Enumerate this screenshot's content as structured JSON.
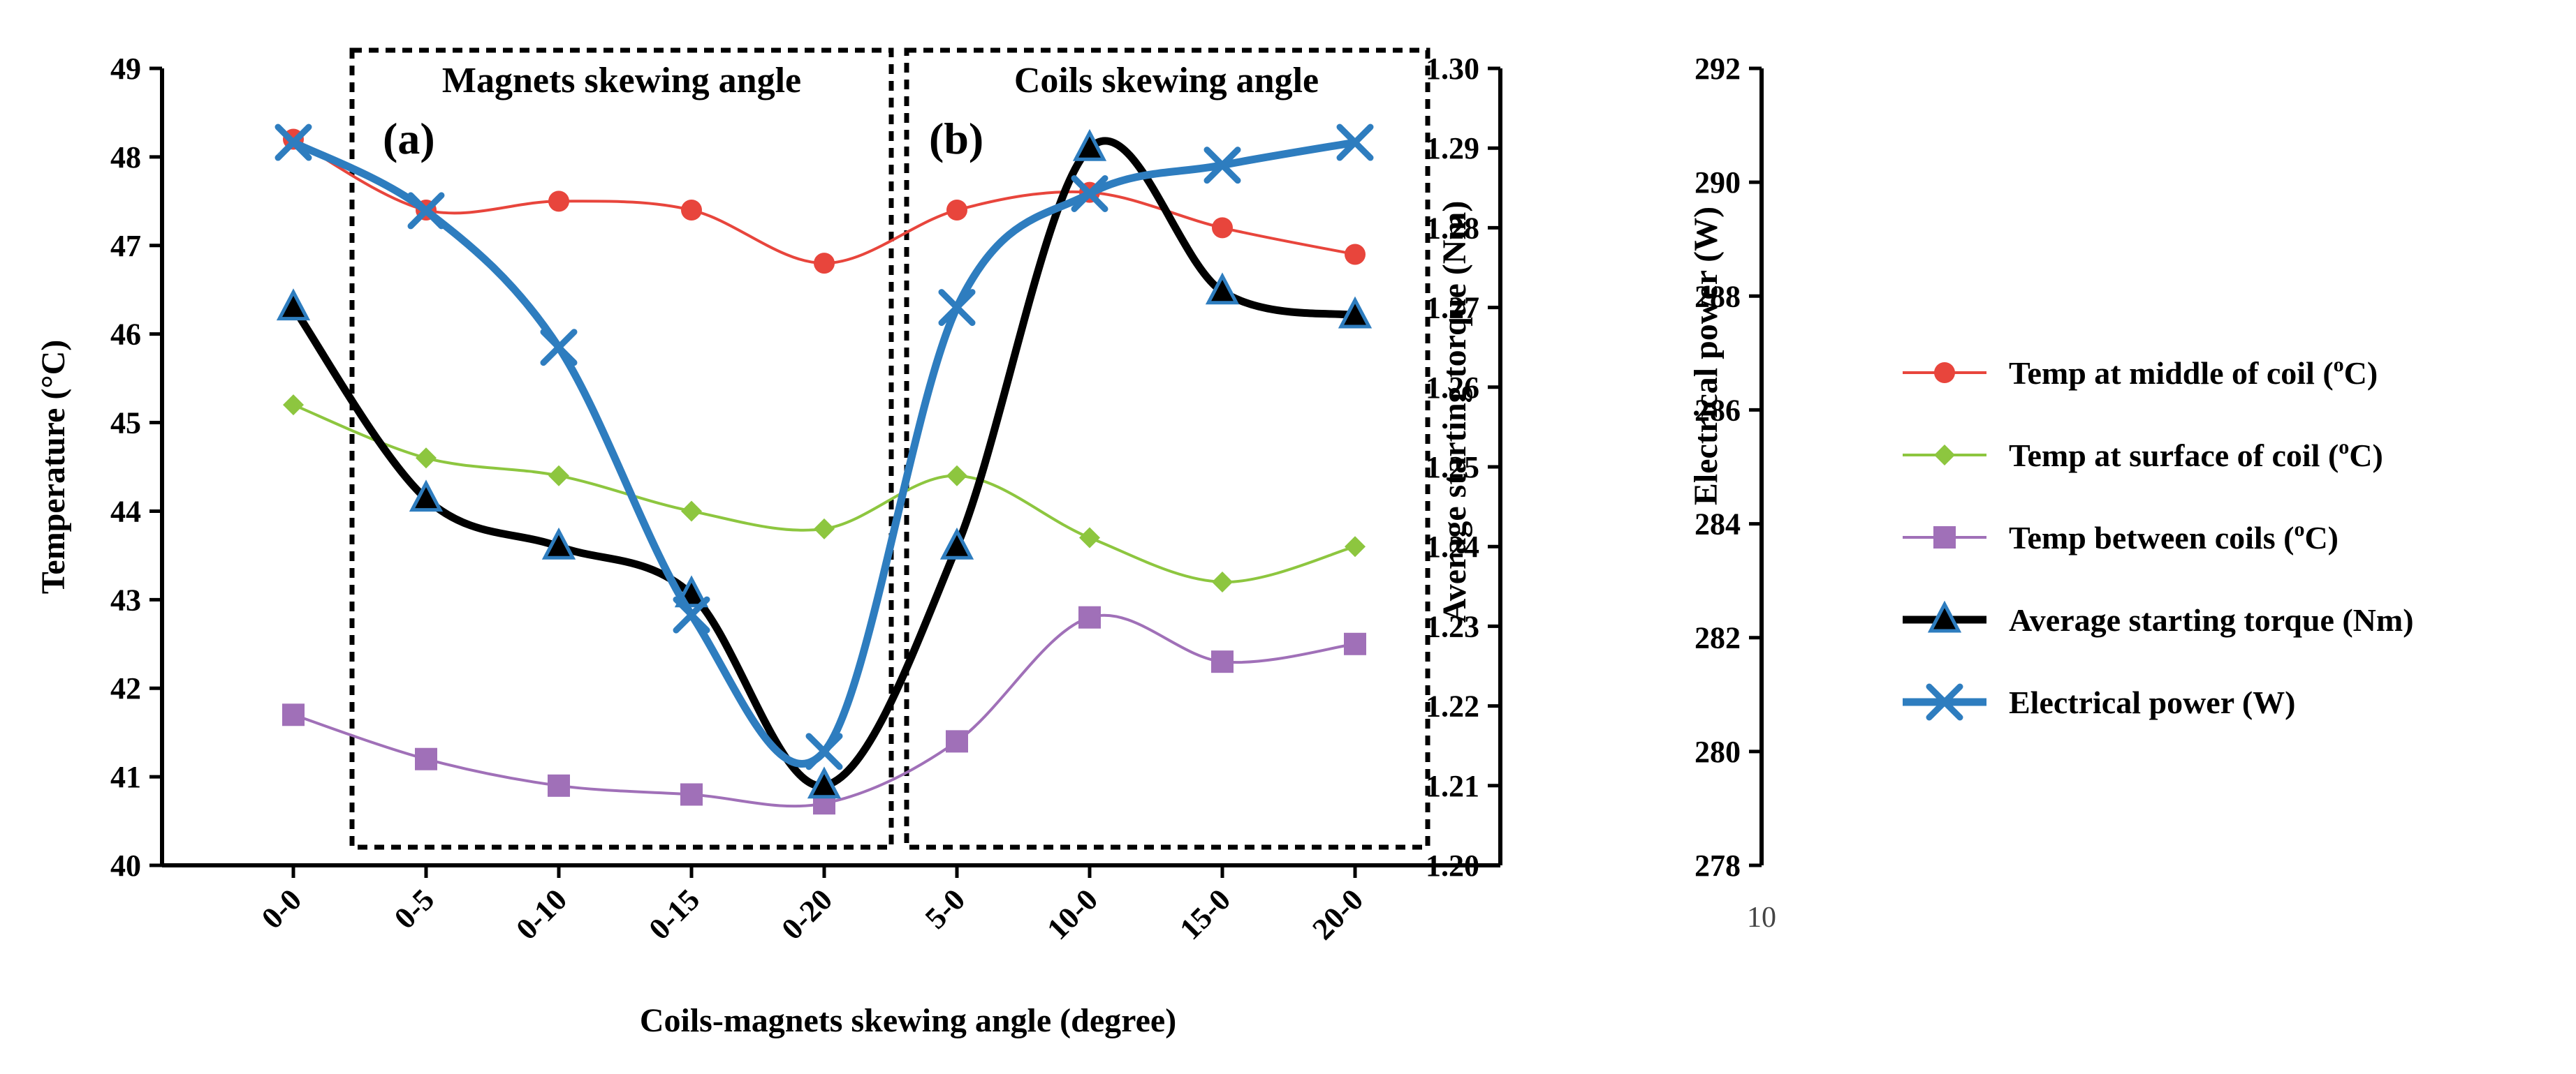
{
  "chart_data": {
    "type": "line",
    "title": "",
    "xlabel": "Coils-magnets skewing angle (degree)",
    "categories": [
      "0-0",
      "0-5",
      "0-10",
      "0-15",
      "0-20",
      "5-0",
      "10-0",
      "15-0",
      "20-0"
    ],
    "axes": {
      "temperature": {
        "label": "Temperature (°C)",
        "label_prefix": "Temperature (",
        "label_unit": "°C",
        "label_suffix": ")",
        "ylim": [
          40,
          49
        ],
        "ticks": [
          "40",
          "41",
          "42",
          "43",
          "44",
          "45",
          "46",
          "47",
          "48",
          "49"
        ]
      },
      "torque": {
        "label": "Average starting torque (Nm)",
        "ylim": [
          1.2,
          1.3
        ],
        "ticks": [
          "1.20",
          "1.21",
          "1.22",
          "1.23",
          "1.24",
          "1.25",
          "1.26",
          "1.27",
          "1.28",
          "1.29",
          "1.30"
        ]
      },
      "power": {
        "label": "Electrical power (W)",
        "ylim": [
          278,
          292
        ],
        "ticks": [
          "278",
          "280",
          "282",
          "284",
          "286",
          "288",
          "290",
          "292"
        ]
      }
    },
    "series": [
      {
        "name": "Temp at middle of coil (°C)",
        "prefix": "Temp at middle of coil (",
        "unit": "o",
        "unit_tail": "C)",
        "axis": "temperature",
        "color": "#e8453c",
        "marker": "circle",
        "values": [
          48.2,
          47.4,
          47.5,
          47.4,
          46.8,
          47.4,
          47.6,
          47.2,
          46.9
        ]
      },
      {
        "name": "Temp at surface of coil (°C)",
        "prefix": "Temp at surface of coil (",
        "unit": "o",
        "unit_tail": "C)",
        "axis": "temperature",
        "color": "#8dc63f",
        "marker": "diamond",
        "values": [
          45.2,
          44.6,
          44.4,
          44.0,
          43.8,
          44.4,
          43.7,
          43.2,
          43.6
        ]
      },
      {
        "name": "Temp between coils (°C)",
        "prefix": "Temp between coils (",
        "unit": "o",
        "unit_tail": "C)",
        "axis": "temperature",
        "color": "#a070b8",
        "marker": "square",
        "values": [
          41.7,
          41.2,
          40.9,
          40.8,
          40.7,
          41.4,
          42.8,
          42.3,
          42.5
        ]
      },
      {
        "name": "Average starting torque (Nm)",
        "prefix": "Average starting torque (Nm)",
        "unit": "",
        "unit_tail": "",
        "axis": "torque",
        "color": "#000000",
        "marker": "triangle",
        "values": [
          1.27,
          1.246,
          1.24,
          1.234,
          1.21,
          1.24,
          1.29,
          1.272,
          1.269
        ]
      },
      {
        "name": "Electrical power (W)",
        "prefix": "Electrical power (W)",
        "unit": "",
        "unit_tail": "",
        "axis": "power",
        "color": "#2e7dbf",
        "marker": "x",
        "values": [
          290.7,
          289.5,
          287.1,
          282.4,
          280.0,
          287.8,
          289.8,
          290.3,
          290.7
        ]
      }
    ],
    "annotations": {
      "box_a_title": "Magnets skewing angle",
      "box_b_title": "Coils skewing angle",
      "box_a_tag": "(a)",
      "box_b_tag": "(b)",
      "stray_label": "10"
    },
    "legend_position": "right"
  }
}
